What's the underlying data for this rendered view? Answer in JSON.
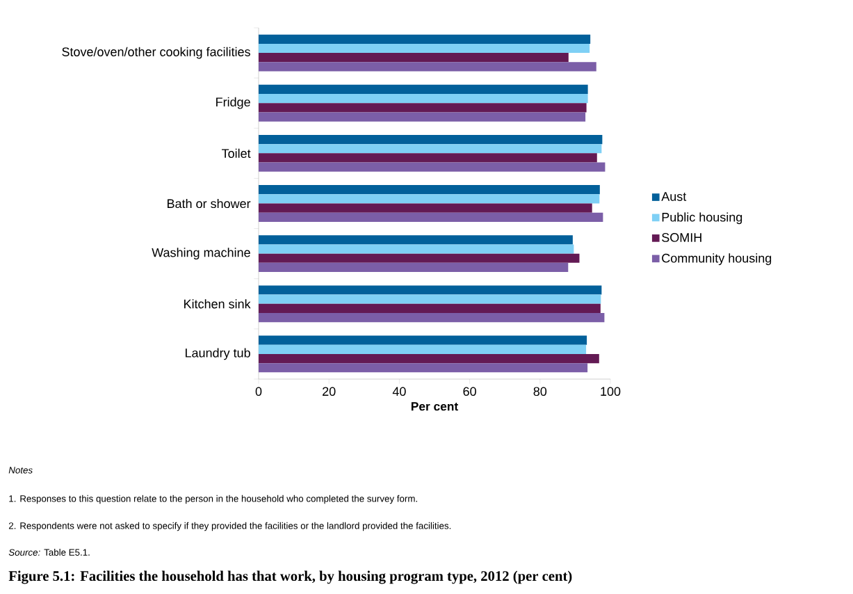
{
  "chart_data": {
    "type": "bar",
    "orientation": "horizontal",
    "title": "Figure 5.1: Facilities the household has that work, by housing program type, 2012 (per cent)",
    "xlabel": "Per cent",
    "categories": [
      "Stove/oven/other cooking facilities",
      "Fridge",
      "Toilet",
      "Bath or shower",
      "Washing machine",
      "Kitchen sink",
      "Laundry tub"
    ],
    "series": [
      {
        "name": "Aust",
        "color": "#02609a",
        "values": [
          94.3,
          93.6,
          97.7,
          97.0,
          89.3,
          97.5,
          93.3
        ]
      },
      {
        "name": "Public housing",
        "color": "#7fd0f5",
        "values": [
          94.1,
          93.6,
          97.5,
          96.9,
          89.6,
          97.3,
          93.1
        ]
      },
      {
        "name": "SOMIH",
        "color": "#631a54",
        "values": [
          88.1,
          93.2,
          96.2,
          94.8,
          91.2,
          97.2,
          96.8
        ]
      },
      {
        "name": "Community housing",
        "color": "#7b5ea7",
        "values": [
          96.0,
          92.9,
          98.5,
          97.9,
          88.0,
          98.3,
          93.5
        ]
      }
    ],
    "xlim": [
      0,
      100
    ],
    "xticks": [
      0,
      20,
      40,
      60,
      80,
      100
    ],
    "grid": false,
    "legend": "right",
    "annotations": [
      "Notes",
      "1. Responses to this question relate to the person in the household who completed the survey form.",
      "2. Respondents were not asked to specify if they provided the facilities or the landlord provided the facilities.",
      "*Source:* Table E5.1."
    ]
  }
}
